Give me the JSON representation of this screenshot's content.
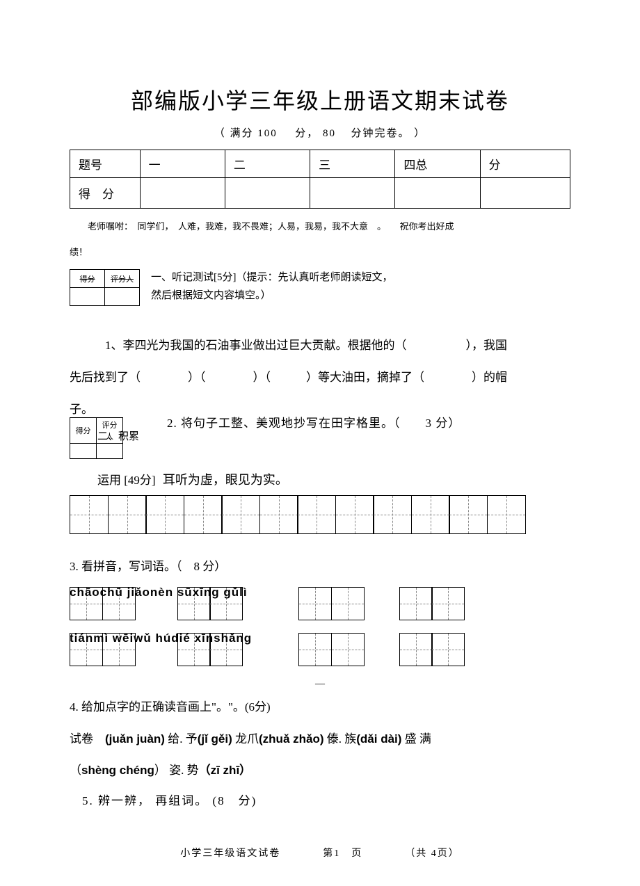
{
  "title": "部编版小学三年级上册语文期末试卷",
  "subtitle_prefix": "（ 满分",
  "subtitle_score": "100",
  "subtitle_mid": "分，",
  "subtitle_time": "80",
  "subtitle_suffix": "分钟完卷。 ）",
  "score_table": {
    "header": [
      "题号",
      "一",
      "二",
      "三",
      "四总",
      "分"
    ],
    "row2_label": "得　分"
  },
  "teacher_note": "老师嘱咐：　同学们，　人难，我难，我不畏难；人易，我易，我不大意　。　　祝你考出好成",
  "teacher_note2": "绩！",
  "mini_table_labels": {
    "score": "得分",
    "grader": "评分人"
  },
  "section1_line1": "一、听记测试[5分]（提示：先认真听老师朗读短文，",
  "section1_line2": "然后根据短文内容填空。）",
  "q1_line1": "1、李四光为我国的石油事业做出过巨大贡献。根据他的（　　　　　），我国",
  "q1_line2": "先后找到了（　　　　）（　　　　）（　　　）等大油田，摘掉了（　　　　）的帽",
  "q1_line3": "子。",
  "section2_label": "二、积累",
  "q2_text": "2. 将句子工整、美观地抄写在田字格里。（　　3 分）",
  "section2_sub": "运用 [49分]",
  "q2_sentence": "耳听为虚，眼见为实。",
  "q3_text": "3. 看拼音，写词语。（　8 分）",
  "pinyin_row1": "chāochū jiǎonèn sūxīng gǔlì",
  "pinyin_row2": "tiánmì wēiwǔ húdié xīnshǎng",
  "q4_line1": "4. 给加点字的正确读音画上\"。\"。(6分)",
  "q4_line2_parts": {
    "p1": "试卷",
    "p2": "(juǎn juàn)",
    "p3": "给. 予",
    "p4": "(jǐ gěi)",
    "p5": "龙爪",
    "p6": "(zhuǎ zhǎo)",
    "p7": "傣. 族",
    "p8": "(dǎi dài)",
    "p9": "盛 满"
  },
  "q4_line3_parts": {
    "p1": "（",
    "p2": "shèng chéng",
    "p3": "） 姿. 势",
    "p4": "（zī zhī）"
  },
  "q5_text": "5. 辨一辨， 再组词。 (8　分)",
  "footer_parts": {
    "p1": "小学三年级语文试卷",
    "p2": "第1　页",
    "p3": "（共 4页）"
  },
  "tian_count_q2": 12,
  "colors": {
    "text": "#000000",
    "background": "#ffffff",
    "dash": "#888888"
  }
}
